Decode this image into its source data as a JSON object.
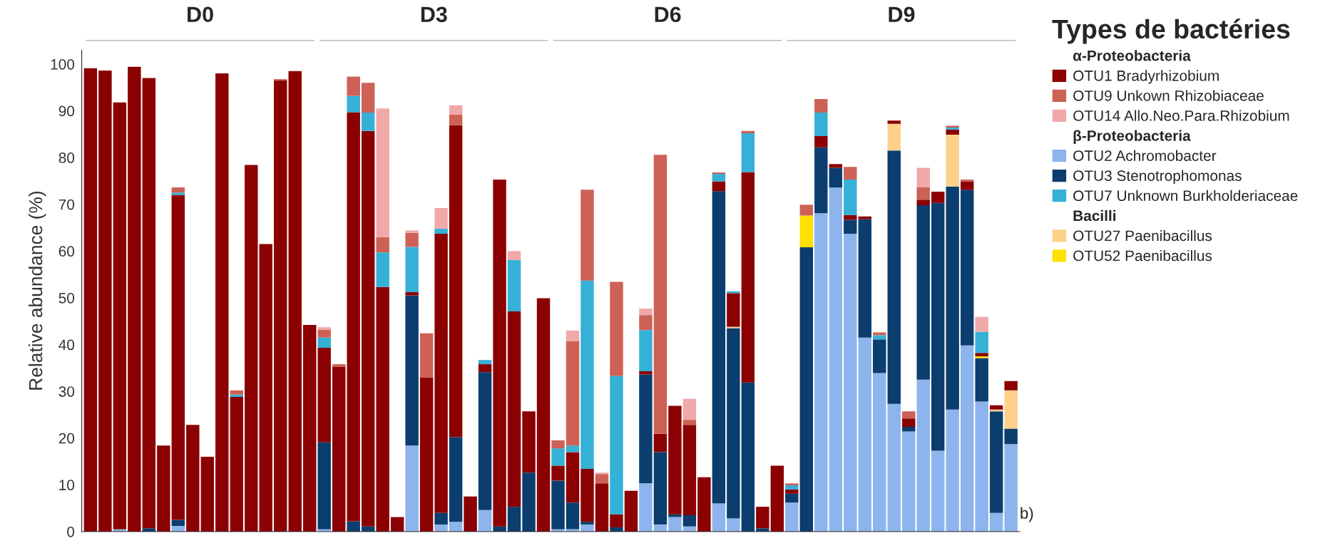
{
  "chart_data": {
    "type": "bar",
    "stacked": true,
    "legend_title": "Types de bactéries",
    "ylabel": "Relative abundance (%)",
    "ylim": [
      0,
      103
    ],
    "yticks": [
      0,
      10,
      20,
      30,
      40,
      50,
      60,
      70,
      80,
      90,
      100
    ],
    "grid": false,
    "legend": "right",
    "annotations": [
      "D0",
      "D3",
      "D6",
      "D9",
      "α-Proteobacteria",
      "β-Proteobacteria",
      "Bacilli",
      "b)"
    ],
    "categories": [
      null,
      null,
      null,
      null,
      null,
      null,
      null,
      null,
      null,
      null,
      null,
      null,
      null,
      null,
      null,
      null,
      null,
      null,
      null,
      null,
      null,
      null,
      null,
      null,
      null,
      null,
      null,
      null,
      null,
      null,
      null,
      null,
      null,
      null,
      null,
      null,
      null,
      null,
      null,
      null,
      null,
      null,
      null,
      null,
      null,
      null,
      null,
      null,
      null,
      null,
      null,
      null,
      null,
      null,
      null,
      null,
      null,
      null,
      null,
      null,
      null,
      null,
      null,
      null
    ],
    "series": [
      {
        "name": "OTU2 Achromobacter",
        "color": "#8db4ec",
        "values": [
          0,
          0,
          0.5,
          0,
          0,
          0,
          1.2,
          0,
          0,
          0,
          0,
          0,
          0,
          0,
          0,
          0,
          0.5,
          0,
          0,
          0,
          0,
          0,
          18.4,
          0,
          1.5,
          2.1,
          0,
          4.6,
          0,
          0,
          0,
          0,
          0.5,
          0.5,
          1.5,
          0,
          0,
          0,
          10.3,
          1.5,
          3.1,
          1.1,
          0,
          6.0,
          2.8,
          0,
          0,
          0,
          6.2,
          null,
          68.1,
          73.6,
          63.7,
          41.5,
          33.9,
          27.3,
          21.4,
          32.5,
          17.3,
          26.1,
          39.8,
          27.8,
          4.0,
          18.7
        ]
      },
      {
        "name": "OTU3 Stenotrophomonas",
        "color": "#0b3d6e",
        "values": [
          0,
          0,
          0,
          0,
          0.7,
          0,
          1.3,
          0,
          0,
          0,
          0,
          0,
          0,
          0,
          0,
          0,
          18.6,
          0,
          2.2,
          1.1,
          0,
          0,
          32.1,
          0,
          2.5,
          18.1,
          0,
          29.5,
          1.1,
          5.3,
          12.6,
          0,
          10.4,
          5.7,
          0.6,
          0,
          0.9,
          0,
          23.3,
          15.5,
          0.6,
          2.4,
          0,
          66.8,
          40.7,
          31.9,
          0.7,
          0,
          1.9,
          60.8,
          14.1,
          4.2,
          3,
          25.3,
          7.2,
          54.2,
          1,
          37.3,
          53,
          47.7,
          33.3,
          9.3,
          21.7,
          3.3
        ]
      },
      {
        "name": "OTU27 Paenibacillus",
        "color": "#fdd08c",
        "values": [
          0,
          0,
          0,
          0,
          0,
          0,
          0,
          0,
          0,
          0,
          0,
          0,
          0,
          0,
          0,
          0,
          0,
          0,
          0,
          0,
          0,
          0,
          0,
          0,
          0,
          0,
          0,
          0,
          0,
          0,
          0,
          0,
          0,
          0,
          0,
          0,
          0,
          0,
          0,
          0,
          0,
          0,
          0,
          0,
          0.3,
          0,
          0,
          0,
          0,
          0,
          0,
          0,
          0,
          0,
          0,
          5.7,
          0,
          0,
          0,
          11.1,
          0,
          0,
          0.4,
          8.2
        ]
      },
      {
        "name": "OTU52 Paenibacillus",
        "color": "#ffe000",
        "values": [
          0,
          0,
          0,
          0,
          0,
          0,
          0,
          0,
          0,
          0,
          0,
          0,
          0,
          0,
          0,
          0,
          0,
          0,
          0,
          0,
          0,
          0,
          0,
          0,
          0,
          0,
          0,
          0,
          0,
          0,
          0,
          0,
          0,
          0,
          0,
          0,
          0,
          0,
          0,
          0,
          0,
          0,
          0,
          0,
          0,
          0,
          0,
          0,
          0,
          6.8,
          0,
          0,
          0,
          0,
          0,
          0,
          0,
          0,
          0,
          0,
          0,
          0.4,
          0,
          0
        ]
      },
      {
        "name": "OTU1 Bradyrhizobium",
        "color": "#8b0000",
        "values": [
          99.1,
          98.6,
          91.3,
          99.4,
          96.3,
          18.4,
          69.5,
          22.8,
          16,
          98,
          28.8,
          78.4,
          61.5,
          96.5,
          98.5,
          44.2,
          20.2,
          35.2,
          87.5,
          84.6,
          52.3,
          3.1,
          0.7,
          33,
          59.7,
          66.7,
          7.5,
          1.7,
          74.2,
          41.8,
          13.1,
          49.9,
          3.2,
          10.8,
          11.3,
          10.3,
          2.8,
          8.7,
          0.7,
          3.9,
          23.2,
          19.3,
          11.6,
          2.1,
          7.2,
          45,
          4.6,
          14.1,
          0.9,
          null,
          2.4,
          0.8,
          1,
          0.6,
          0,
          0.7,
          1.8,
          1.2,
          2.4,
          1.1,
          1.8,
          0.7,
          0.9,
          2
        ]
      },
      {
        "name": "OTU7 Unknown Burkholderiaceae",
        "color": "#35b0d6",
        "values": [
          0,
          0,
          0,
          0,
          0,
          0,
          0.5,
          0,
          0,
          0,
          0.5,
          0,
          0,
          0,
          0,
          0,
          2.2,
          0,
          3.5,
          3.9,
          7.4,
          0,
          9.7,
          0,
          1.1,
          0,
          0,
          0.9,
          0,
          11,
          0,
          0,
          3.7,
          1.4,
          40.3,
          0,
          29.6,
          0,
          8.8,
          0,
          0,
          0,
          0,
          1.6,
          0.4,
          8.3,
          0,
          0,
          0.9,
          0,
          5,
          0,
          7.6,
          0,
          0.9,
          0,
          0,
          0,
          0,
          0.4,
          0,
          4.5,
          0,
          0
        ]
      },
      {
        "name": "OTU9 Unkown Rhizobiaceae",
        "color": "#cd6155",
        "values": [
          0,
          0,
          0,
          0,
          0,
          0,
          1.1,
          0,
          0,
          0,
          0.9,
          0,
          0,
          0.3,
          0,
          0,
          1.7,
          0.6,
          4.1,
          6.4,
          3.3,
          0,
          3,
          9.4,
          0,
          2.3,
          0,
          0,
          0,
          0,
          0,
          0,
          1.7,
          22.3,
          19.4,
          2,
          20.1,
          0,
          3.2,
          59.7,
          0,
          1.1,
          0,
          0.3,
          0,
          0.5,
          0,
          0,
          0.4,
          2.3,
          2.9,
          0,
          2.7,
          0,
          0.6,
          0,
          1.5,
          2.6,
          0,
          0.4,
          0.4,
          0,
          0,
          0
        ]
      },
      {
        "name": "OTU14 Allo.Neo.Para.Rhizobium",
        "color": "#f0a8a8",
        "values": [
          0,
          0,
          0,
          0,
          0,
          0,
          0,
          0,
          0,
          0,
          0,
          0,
          0,
          0,
          0,
          0,
          0.5,
          0,
          0,
          0,
          27.5,
          0,
          0.5,
          0,
          4.4,
          2,
          0,
          0,
          0,
          1.9,
          0,
          0,
          0,
          2.3,
          0,
          0.3,
          0,
          0,
          1.4,
          0,
          0,
          4.5,
          0,
          0,
          0,
          0,
          0,
          0,
          0,
          0,
          0,
          0,
          0,
          0,
          0,
          0,
          0,
          4.2,
          0,
          0,
          0,
          3.2,
          0,
          0
        ]
      }
    ]
  }
}
